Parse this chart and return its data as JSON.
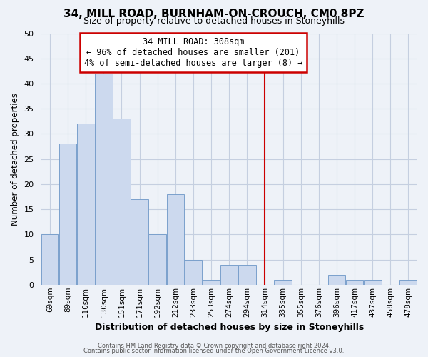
{
  "title": "34, MILL ROAD, BURNHAM-ON-CROUCH, CM0 8PZ",
  "subtitle": "Size of property relative to detached houses in Stoneyhills",
  "xlabel": "Distribution of detached houses by size in Stoneyhills",
  "ylabel": "Number of detached properties",
  "bin_labels": [
    "69sqm",
    "89sqm",
    "110sqm",
    "130sqm",
    "151sqm",
    "171sqm",
    "192sqm",
    "212sqm",
    "233sqm",
    "253sqm",
    "274sqm",
    "294sqm",
    "314sqm",
    "335sqm",
    "355sqm",
    "376sqm",
    "396sqm",
    "417sqm",
    "437sqm",
    "458sqm",
    "478sqm"
  ],
  "heights": [
    10,
    28,
    32,
    42,
    33,
    17,
    10,
    18,
    5,
    1,
    4,
    4,
    0,
    1,
    0,
    0,
    2,
    1,
    1,
    0,
    1
  ],
  "bar_color": "#ccd9ee",
  "bar_edgecolor": "#7aa0cc",
  "vline_index": 12,
  "vline_color": "#cc0000",
  "ylim": [
    0,
    50
  ],
  "yticks": [
    0,
    5,
    10,
    15,
    20,
    25,
    30,
    35,
    40,
    45,
    50
  ],
  "grid_color": "#c5cfe0",
  "bg_color": "#eef2f8",
  "annotation_title": "34 MILL ROAD: 308sqm",
  "annotation_line1": "← 96% of detached houses are smaller (201)",
  "annotation_line2": "4% of semi-detached houses are larger (8) →",
  "annotation_box_facecolor": "#ffffff",
  "annotation_border_color": "#cc0000",
  "footer1": "Contains HM Land Registry data © Crown copyright and database right 2024.",
  "footer2": "Contains public sector information licensed under the Open Government Licence v3.0."
}
